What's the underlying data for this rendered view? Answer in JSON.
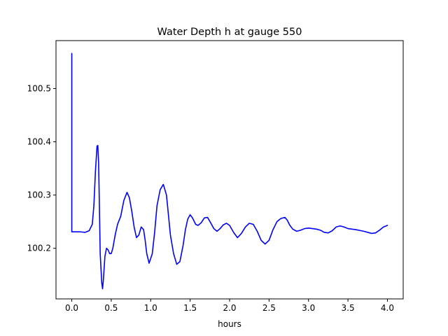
{
  "chart_data": {
    "type": "line",
    "title": "Water Depth h at gauge 550",
    "xlabel": "hours",
    "ylabel": "",
    "xlim": [
      -0.2,
      4.2
    ],
    "ylim": [
      100.105,
      100.59
    ],
    "xticks": [
      0.0,
      0.5,
      1.0,
      1.5,
      2.0,
      2.5,
      3.0,
      3.5,
      4.0
    ],
    "xtick_labels": [
      "0.0",
      "0.5",
      "1.0",
      "1.5",
      "2.0",
      "2.5",
      "3.0",
      "3.5",
      "4.0"
    ],
    "yticks": [
      100.2,
      100.3,
      100.4,
      100.5
    ],
    "ytick_labels": [
      "100.2",
      "100.3",
      "100.4",
      "100.5"
    ],
    "grid": false,
    "legend": "none",
    "series": [
      {
        "color": "#0000ff",
        "x": [
          0.0,
          0.0,
          0.0,
          0.1,
          0.17,
          0.22,
          0.26,
          0.28,
          0.3,
          0.32,
          0.33,
          0.34,
          0.35,
          0.36,
          0.38,
          0.39,
          0.4,
          0.42,
          0.44,
          0.46,
          0.48,
          0.5,
          0.52,
          0.55,
          0.58,
          0.62,
          0.66,
          0.7,
          0.73,
          0.76,
          0.79,
          0.82,
          0.85,
          0.88,
          0.91,
          0.93,
          0.95,
          0.98,
          1.02,
          1.05,
          1.08,
          1.12,
          1.16,
          1.2,
          1.22,
          1.25,
          1.29,
          1.33,
          1.37,
          1.41,
          1.44,
          1.47,
          1.5,
          1.53,
          1.57,
          1.6,
          1.64,
          1.68,
          1.72,
          1.76,
          1.8,
          1.84,
          1.88,
          1.92,
          1.96,
          2.0,
          2.05,
          2.1,
          2.15,
          2.2,
          2.25,
          2.3,
          2.35,
          2.4,
          2.45,
          2.5,
          2.55,
          2.6,
          2.65,
          2.7,
          2.73,
          2.76,
          2.8,
          2.85,
          2.9,
          2.95,
          3.0,
          3.05,
          3.1,
          3.15,
          3.2,
          3.25,
          3.3,
          3.35,
          3.4,
          3.45,
          3.5,
          3.6,
          3.7,
          3.8,
          3.85,
          3.9,
          3.95,
          4.0
        ],
        "y": [
          100.231,
          100.566,
          100.231,
          100.231,
          100.23,
          100.233,
          100.245,
          100.28,
          100.345,
          100.392,
          100.393,
          100.36,
          100.28,
          100.19,
          100.135,
          100.124,
          100.14,
          100.185,
          100.2,
          100.197,
          100.19,
          100.19,
          100.2,
          100.225,
          100.245,
          100.26,
          100.29,
          100.305,
          100.295,
          100.27,
          100.24,
          100.22,
          100.225,
          100.24,
          100.235,
          100.215,
          100.19,
          100.172,
          100.19,
          100.23,
          100.28,
          100.31,
          100.32,
          100.3,
          100.27,
          100.225,
          100.19,
          100.17,
          100.175,
          100.205,
          100.235,
          100.255,
          100.263,
          100.257,
          100.245,
          100.243,
          100.248,
          100.257,
          100.258,
          100.248,
          100.237,
          100.232,
          100.237,
          100.244,
          100.247,
          100.243,
          100.23,
          100.22,
          100.228,
          100.24,
          100.247,
          100.245,
          100.232,
          100.215,
          100.208,
          100.215,
          100.235,
          100.25,
          100.256,
          100.258,
          100.253,
          100.244,
          100.236,
          100.232,
          100.234,
          100.237,
          100.238,
          100.237,
          100.236,
          100.234,
          100.23,
          100.229,
          100.233,
          100.24,
          100.242,
          100.24,
          100.237,
          100.235,
          100.232,
          100.228,
          100.229,
          100.234,
          100.24,
          100.243
        ]
      }
    ]
  }
}
